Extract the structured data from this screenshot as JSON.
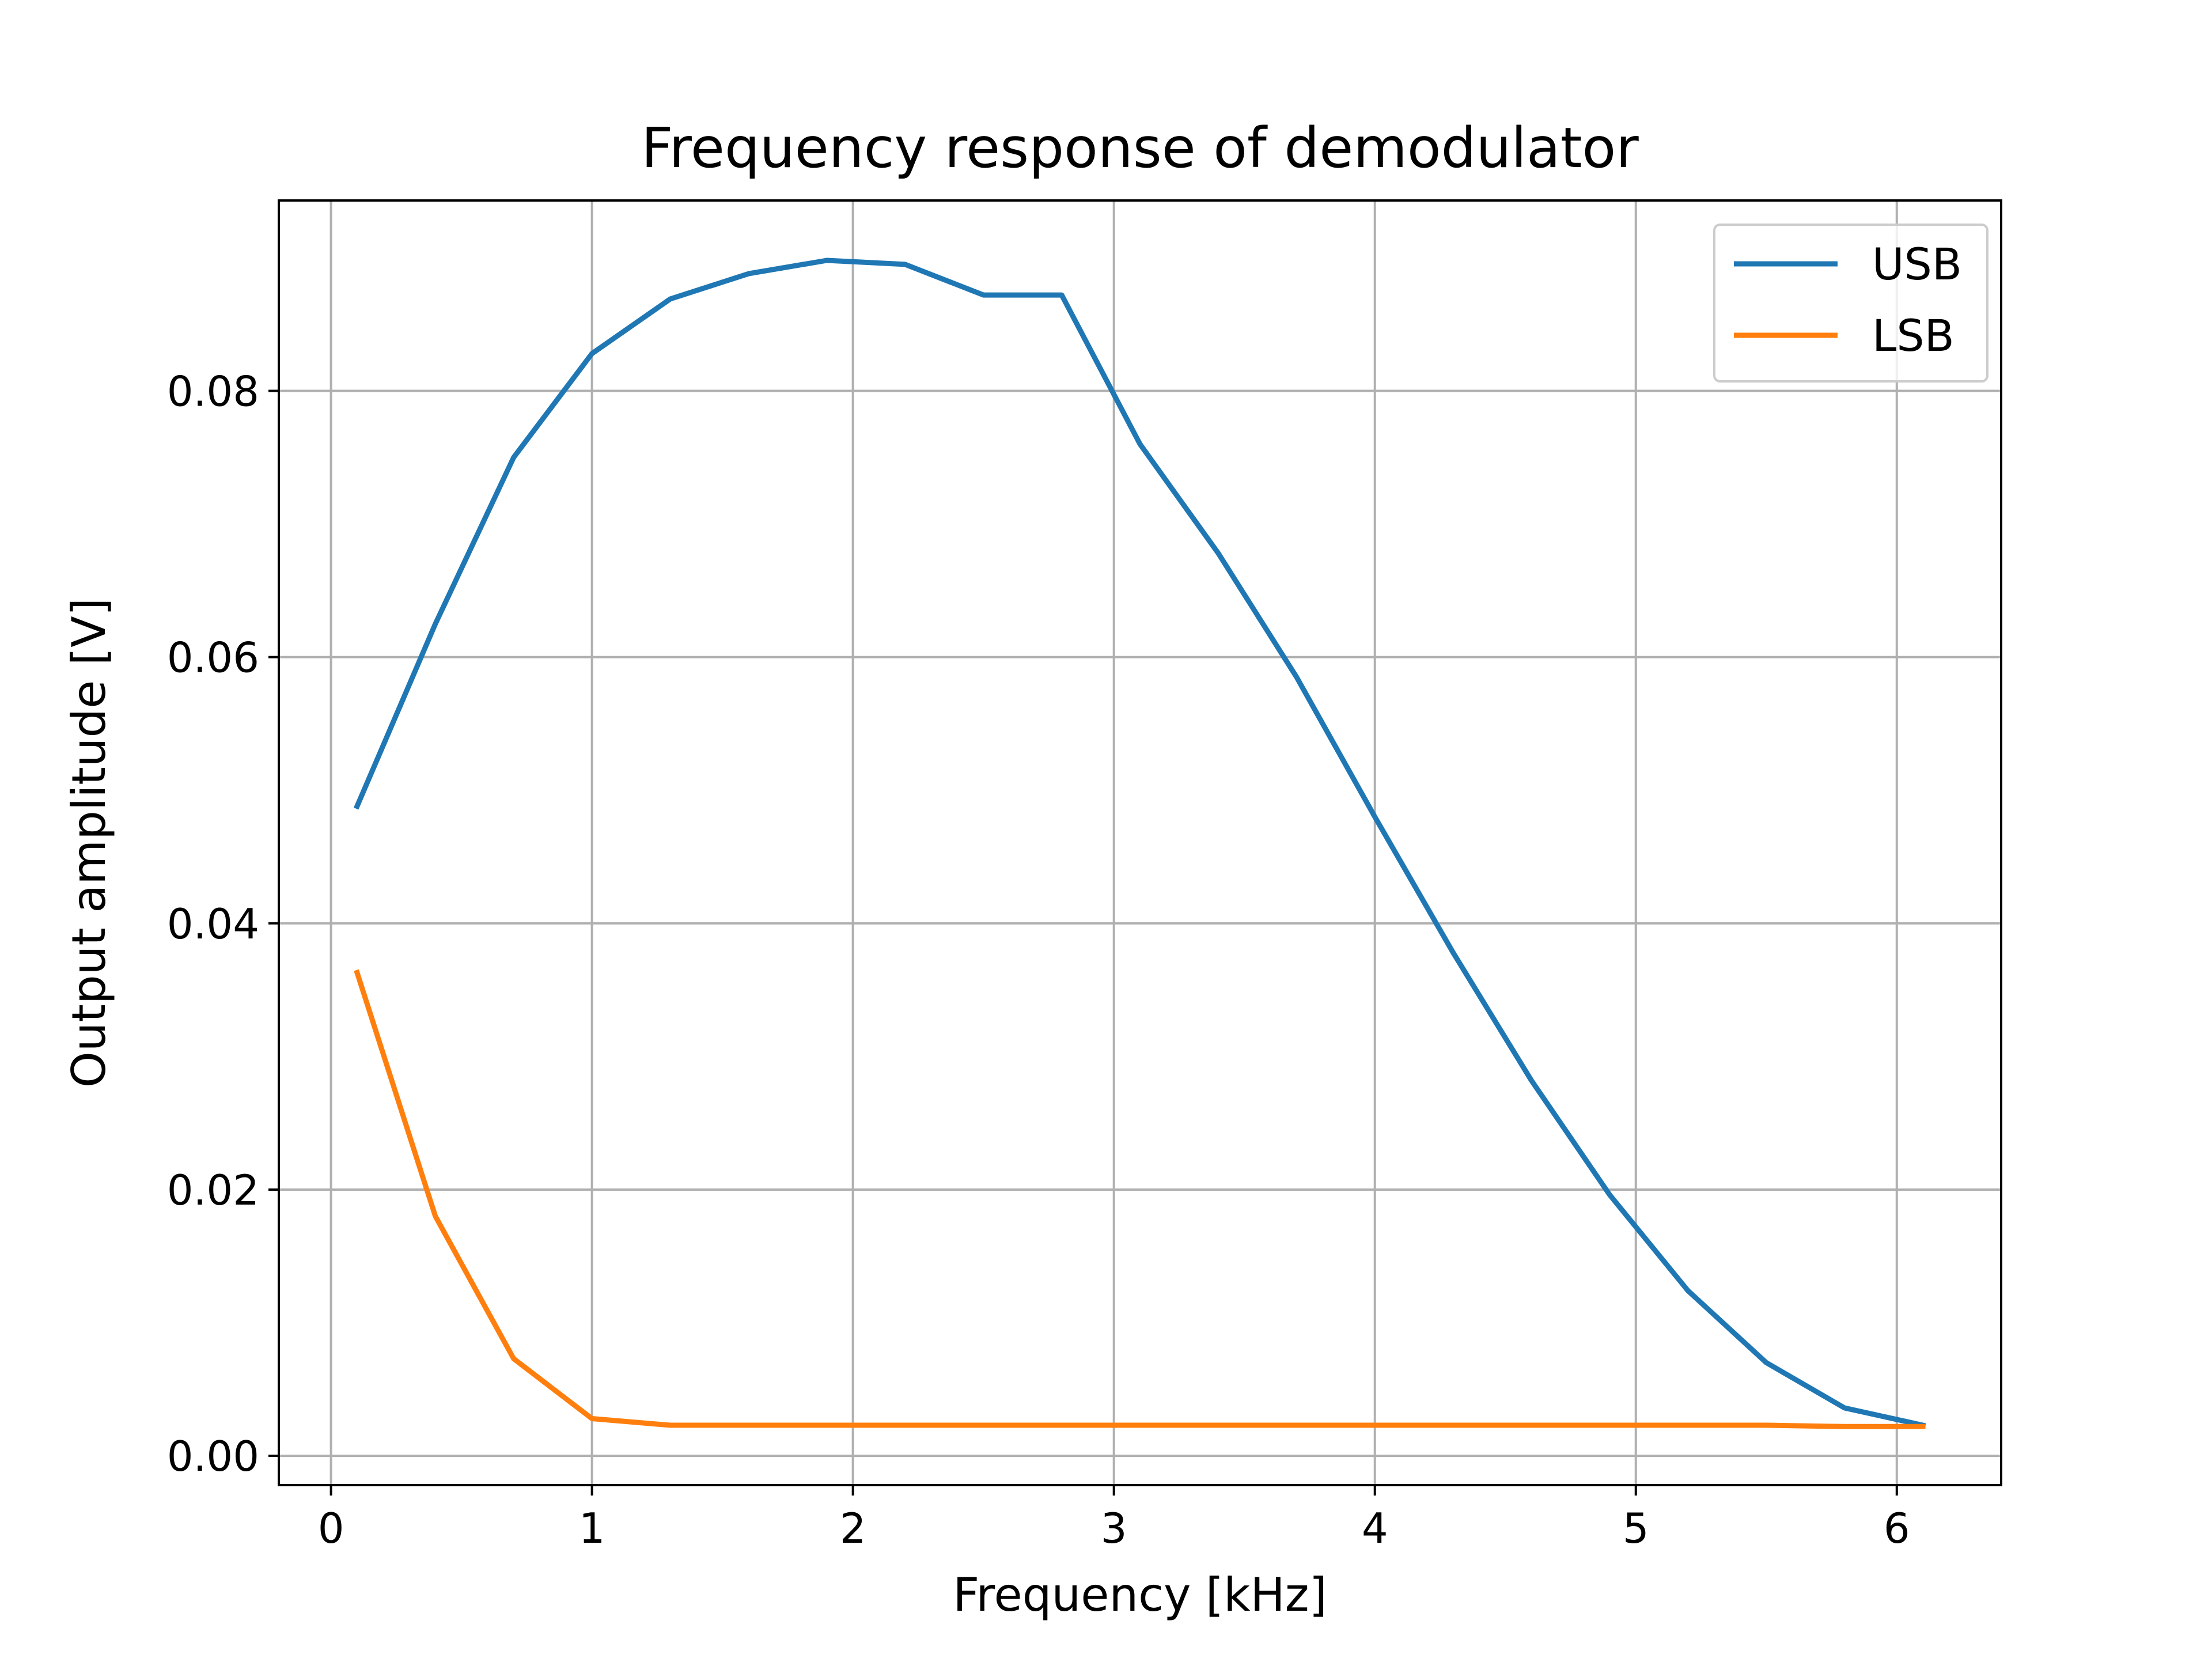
{
  "chart_data": {
    "type": "line",
    "title": "Frequency response of demodulator",
    "xlabel": "Frequency [kHz]",
    "ylabel": "Output amplitude [V]",
    "xlim": [
      -0.2,
      6.4
    ],
    "ylim": [
      -0.0022,
      0.0943
    ],
    "x_ticks": [
      0,
      1,
      2,
      3,
      4,
      5,
      6
    ],
    "x_tick_labels": [
      "0",
      "1",
      "2",
      "3",
      "4",
      "5",
      "6"
    ],
    "y_ticks": [
      0.0,
      0.02,
      0.04,
      0.06,
      0.08
    ],
    "y_tick_labels": [
      "0.00",
      "0.02",
      "0.04",
      "0.06",
      "0.08"
    ],
    "grid": true,
    "legend_position": "top-right",
    "x": [
      0.1,
      0.4,
      0.7,
      1.0,
      1.3,
      1.6,
      1.9,
      2.2,
      2.5,
      2.8,
      3.1,
      3.4,
      3.7,
      4.0,
      4.3,
      4.6,
      4.9,
      5.2,
      5.5,
      5.8,
      6.1
    ],
    "series": [
      {
        "name": "USB",
        "color": "#1f77b4",
        "values": [
          0.0488,
          0.0625,
          0.075,
          0.0828,
          0.0869,
          0.0888,
          0.0898,
          0.0895,
          0.0872,
          0.0872,
          0.076,
          0.0678,
          0.0585,
          0.048,
          0.0378,
          0.0282,
          0.0196,
          0.0124,
          0.007,
          0.0036,
          0.0023
        ]
      },
      {
        "name": "LSB",
        "color": "#ff7f0e",
        "values": [
          0.0363,
          0.018,
          0.0073,
          0.0028,
          0.0023,
          0.0023,
          0.0023,
          0.0023,
          0.0023,
          0.0023,
          0.0023,
          0.0023,
          0.0023,
          0.0023,
          0.0023,
          0.0023,
          0.0023,
          0.0023,
          0.0023,
          0.0022,
          0.0022
        ]
      }
    ]
  }
}
